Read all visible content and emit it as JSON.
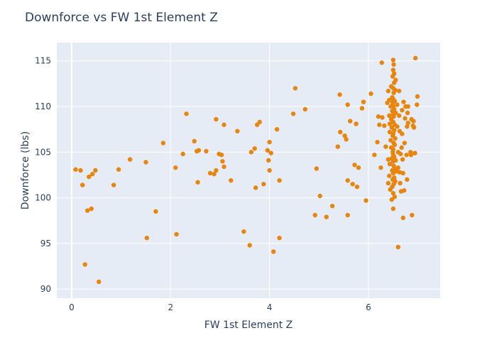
{
  "chart_data": {
    "type": "scatter",
    "title": "Downforce vs FW 1st Element Z",
    "xlabel": "FW 1st Element Z",
    "ylabel": "Downforce (lbs)",
    "xlim": [
      -0.3,
      7.45
    ],
    "ylim": [
      89.0,
      117.0
    ],
    "x_ticks": [
      0,
      2,
      4,
      6
    ],
    "y_ticks": [
      90,
      95,
      100,
      105,
      110,
      115
    ],
    "grid": true,
    "colors": {
      "marker": "#e8850c",
      "plot_background": "#e5ecf6",
      "grid": "#ffffff",
      "text": "#2a3f5f"
    },
    "points": [
      [
        0.08,
        103.1
      ],
      [
        0.18,
        103.0
      ],
      [
        0.22,
        101.4
      ],
      [
        0.27,
        92.7
      ],
      [
        0.32,
        98.6
      ],
      [
        0.35,
        102.3
      ],
      [
        0.4,
        98.8
      ],
      [
        0.42,
        102.6
      ],
      [
        0.48,
        103.0
      ],
      [
        0.55,
        90.8
      ],
      [
        0.85,
        101.4
      ],
      [
        0.95,
        103.1
      ],
      [
        1.18,
        104.2
      ],
      [
        1.5,
        103.9
      ],
      [
        1.52,
        95.6
      ],
      [
        1.7,
        98.5
      ],
      [
        1.85,
        106.0
      ],
      [
        2.1,
        103.3
      ],
      [
        2.12,
        96.0
      ],
      [
        2.25,
        104.8
      ],
      [
        2.32,
        109.2
      ],
      [
        2.48,
        106.2
      ],
      [
        2.53,
        105.1
      ],
      [
        2.55,
        101.7
      ],
      [
        2.57,
        105.2
      ],
      [
        2.72,
        105.1
      ],
      [
        2.8,
        102.7
      ],
      [
        2.88,
        102.6
      ],
      [
        2.92,
        103.0
      ],
      [
        2.92,
        108.6
      ],
      [
        2.98,
        104.8
      ],
      [
        3.03,
        104.7
      ],
      [
        3.05,
        104.0
      ],
      [
        3.08,
        103.4
      ],
      [
        3.08,
        108.0
      ],
      [
        3.22,
        101.9
      ],
      [
        3.35,
        107.3
      ],
      [
        3.48,
        96.3
      ],
      [
        3.6,
        94.8
      ],
      [
        3.63,
        105.0
      ],
      [
        3.7,
        105.4
      ],
      [
        3.72,
        101.1
      ],
      [
        3.75,
        108.0
      ],
      [
        3.8,
        108.3
      ],
      [
        3.88,
        101.5
      ],
      [
        3.96,
        105.2
      ],
      [
        3.98,
        104.1
      ],
      [
        4.0,
        103.0
      ],
      [
        4.0,
        106.1
      ],
      [
        4.03,
        104.9
      ],
      [
        4.08,
        94.1
      ],
      [
        4.15,
        107.5
      ],
      [
        4.2,
        95.6
      ],
      [
        4.2,
        101.9
      ],
      [
        4.48,
        109.2
      ],
      [
        4.52,
        112.0
      ],
      [
        4.72,
        109.7
      ],
      [
        4.92,
        98.1
      ],
      [
        4.95,
        103.2
      ],
      [
        5.02,
        100.2
      ],
      [
        5.15,
        97.9
      ],
      [
        5.27,
        99.1
      ],
      [
        5.38,
        105.6
      ],
      [
        5.42,
        111.3
      ],
      [
        5.43,
        107.2
      ],
      [
        5.52,
        106.8
      ],
      [
        5.55,
        106.4
      ],
      [
        5.58,
        98.1
      ],
      [
        5.58,
        101.9
      ],
      [
        5.58,
        110.2
      ],
      [
        5.63,
        108.4
      ],
      [
        5.68,
        101.5
      ],
      [
        5.72,
        103.6
      ],
      [
        5.75,
        108.1
      ],
      [
        5.77,
        101.2
      ],
      [
        5.8,
        103.3
      ],
      [
        5.87,
        109.8
      ],
      [
        5.9,
        110.5
      ],
      [
        5.95,
        99.7
      ],
      [
        6.05,
        111.4
      ],
      [
        6.12,
        104.7
      ],
      [
        6.18,
        106.1
      ],
      [
        6.2,
        108.9
      ],
      [
        6.22,
        108.0
      ],
      [
        6.25,
        103.3
      ],
      [
        6.27,
        114.8
      ],
      [
        6.28,
        108.8
      ],
      [
        6.32,
        107.9
      ],
      [
        6.35,
        105.6
      ],
      [
        6.38,
        110.4
      ],
      [
        6.4,
        101.6
      ],
      [
        6.4,
        104.2
      ],
      [
        6.4,
        111.7
      ],
      [
        6.42,
        102.4
      ],
      [
        6.42,
        109.0
      ],
      [
        6.42,
        110.7
      ],
      [
        6.43,
        103.7
      ],
      [
        6.43,
        107.2
      ],
      [
        6.43,
        108.1
      ],
      [
        6.44,
        100.9
      ],
      [
        6.45,
        106.3
      ],
      [
        6.45,
        110.0
      ],
      [
        6.46,
        105.5
      ],
      [
        6.46,
        108.6
      ],
      [
        6.46,
        112.2
      ],
      [
        6.47,
        99.8
      ],
      [
        6.47,
        104.3
      ],
      [
        6.47,
        107.7
      ],
      [
        6.48,
        101.2
      ],
      [
        6.48,
        103.0
      ],
      [
        6.48,
        109.5
      ],
      [
        6.48,
        111.0
      ],
      [
        6.49,
        102.0
      ],
      [
        6.49,
        105.0
      ],
      [
        6.49,
        106.8
      ],
      [
        6.49,
        110.4
      ],
      [
        6.49,
        113.3
      ],
      [
        6.5,
        98.8
      ],
      [
        6.5,
        100.5
      ],
      [
        6.5,
        102.7
      ],
      [
        6.5,
        104.0
      ],
      [
        6.5,
        104.7
      ],
      [
        6.5,
        105.3
      ],
      [
        6.5,
        107.0
      ],
      [
        6.5,
        108.3
      ],
      [
        6.5,
        109.1
      ],
      [
        6.5,
        110.0
      ],
      [
        6.5,
        110.8
      ],
      [
        6.5,
        112.0
      ],
      [
        6.5,
        114.0
      ],
      [
        6.5,
        115.1
      ],
      [
        6.51,
        101.5
      ],
      [
        6.51,
        103.5
      ],
      [
        6.51,
        106.0
      ],
      [
        6.51,
        108.9
      ],
      [
        6.51,
        111.5
      ],
      [
        6.51,
        114.6
      ],
      [
        6.52,
        102.2
      ],
      [
        6.52,
        104.5
      ],
      [
        6.52,
        107.4
      ],
      [
        6.52,
        109.7
      ],
      [
        6.52,
        112.6
      ],
      [
        6.52,
        113.6
      ],
      [
        6.53,
        100.1
      ],
      [
        6.53,
        103.2
      ],
      [
        6.53,
        105.8
      ],
      [
        6.53,
        108.0
      ],
      [
        6.53,
        110.6
      ],
      [
        6.54,
        101.8
      ],
      [
        6.54,
        106.5
      ],
      [
        6.54,
        111.8
      ],
      [
        6.55,
        104.1
      ],
      [
        6.55,
        109.3
      ],
      [
        6.55,
        112.9
      ],
      [
        6.57,
        102.9
      ],
      [
        6.58,
        107.8
      ],
      [
        6.58,
        110.2
      ],
      [
        6.6,
        94.6
      ],
      [
        6.6,
        103.3
      ],
      [
        6.6,
        105.0
      ],
      [
        6.62,
        111.7
      ],
      [
        6.62,
        109.0
      ],
      [
        6.63,
        102.8
      ],
      [
        6.63,
        107.3
      ],
      [
        6.64,
        101.6
      ],
      [
        6.65,
        104.8
      ],
      [
        6.66,
        100.7
      ],
      [
        6.67,
        105.5
      ],
      [
        6.68,
        107.0
      ],
      [
        6.68,
        109.6
      ],
      [
        6.69,
        104.2
      ],
      [
        6.7,
        97.8
      ],
      [
        6.7,
        102.7
      ],
      [
        6.71,
        110.5
      ],
      [
        6.72,
        100.8
      ],
      [
        6.73,
        106.0
      ],
      [
        6.74,
        108.7
      ],
      [
        6.75,
        110.0
      ],
      [
        6.77,
        104.7
      ],
      [
        6.78,
        102.0
      ],
      [
        6.78,
        107.8
      ],
      [
        6.79,
        109.3
      ],
      [
        6.8,
        110.0
      ],
      [
        6.8,
        108.2
      ],
      [
        6.85,
        105.0
      ],
      [
        6.86,
        104.7
      ],
      [
        6.87,
        108.6
      ],
      [
        6.88,
        98.1
      ],
      [
        6.9,
        107.9
      ],
      [
        6.91,
        108.4
      ],
      [
        6.92,
        107.7
      ],
      [
        6.94,
        104.9
      ],
      [
        6.95,
        115.3
      ],
      [
        6.98,
        110.2
      ],
      [
        6.99,
        111.1
      ]
    ]
  }
}
